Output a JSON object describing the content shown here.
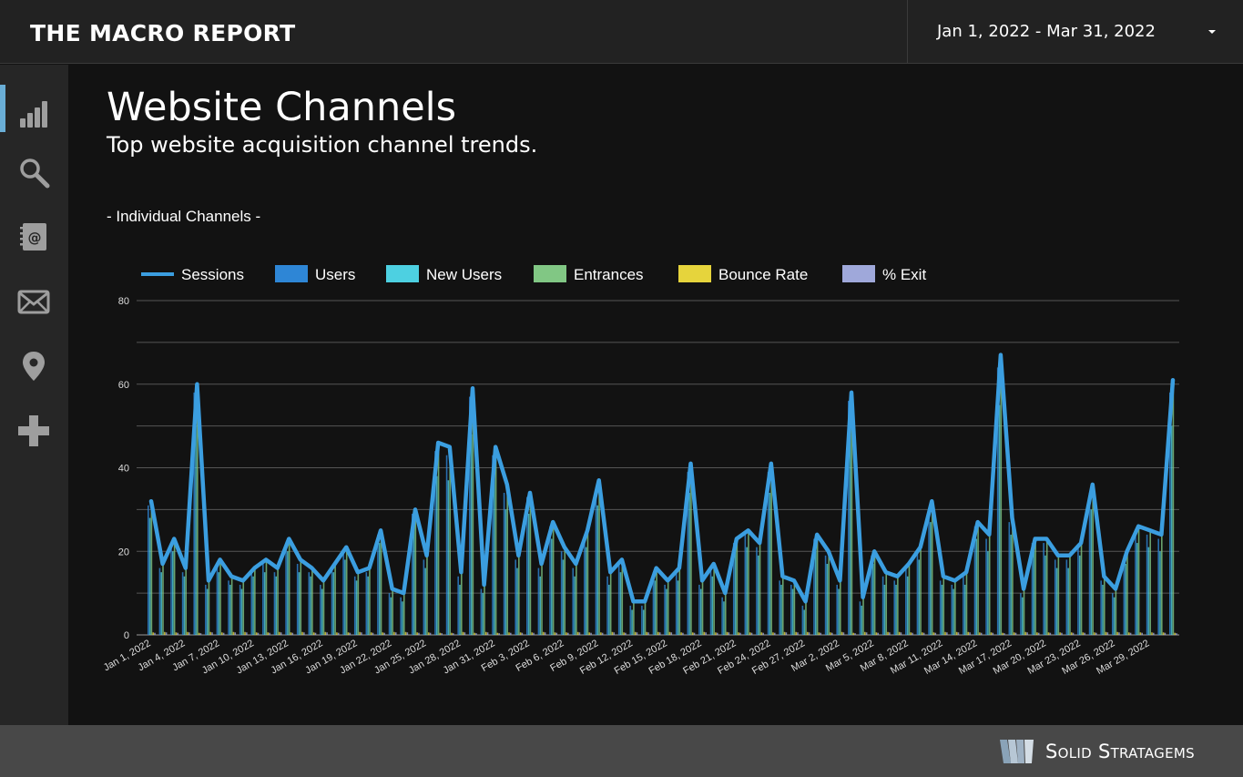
{
  "header": {
    "brand": "THE MACRO REPORT",
    "date_range": "Jan 1, 2022 - Mar 31, 2022"
  },
  "sidebar": {
    "items": [
      {
        "name": "bar-chart-icon",
        "active": true
      },
      {
        "name": "search-icon",
        "active": false
      },
      {
        "name": "contact-book-icon",
        "active": false
      },
      {
        "name": "mail-icon",
        "active": false
      },
      {
        "name": "location-pin-icon",
        "active": false
      },
      {
        "name": "plus-icon",
        "active": false
      }
    ]
  },
  "page": {
    "title": "Website Channels",
    "subtitle": "Top website acquisition channel trends.",
    "section_label": "- Individual Channels -"
  },
  "colors": {
    "sessions": "#3b9ee0",
    "users": "#2e86d6",
    "new_users": "#4dd0e1",
    "entrances": "#81c784",
    "bounce_rate": "#e6d43c",
    "exit": "#9fa8da",
    "active_nav": "#6aaed6"
  },
  "chart_data": {
    "type": "line",
    "legend_position": "top-left",
    "grid": true,
    "ylim": [
      0,
      80
    ],
    "yticks": [
      0,
      20,
      40,
      60,
      80
    ],
    "start_date": "2022-01-01",
    "x_tick_labels": [
      "Jan 1, 2022",
      "Jan 4, 2022",
      "Jan 7, 2022",
      "Jan 10, 2022",
      "Jan 13, 2022",
      "Jan 16, 2022",
      "Jan 19, 2022",
      "Jan 22, 2022",
      "Jan 25, 2022",
      "Jan 28, 2022",
      "Jan 31, 2022",
      "Feb 3, 2022",
      "Feb 6, 2022",
      "Feb 9, 2022",
      "Feb 12, 2022",
      "Feb 15, 2022",
      "Feb 18, 2022",
      "Feb 21, 2022",
      "Feb 24, 2022",
      "Feb 27, 2022",
      "Mar 2, 2022",
      "Mar 5, 2022",
      "Mar 8, 2022",
      "Mar 11, 2022",
      "Mar 14, 2022",
      "Mar 17, 2022",
      "Mar 20, 2022",
      "Mar 23, 2022",
      "Mar 26, 2022",
      "Mar 29, 2022"
    ],
    "series": [
      {
        "name": "Sessions",
        "type": "line",
        "values": [
          32,
          17,
          23,
          16,
          60,
          13,
          18,
          14,
          13,
          16,
          18,
          16,
          23,
          18,
          16,
          13,
          17,
          21,
          15,
          16,
          25,
          11,
          10,
          30,
          19,
          46,
          45,
          15,
          59,
          12,
          45,
          36,
          19,
          34,
          17,
          27,
          21,
          17,
          25,
          37,
          15,
          18,
          8,
          8,
          16,
          13,
          16,
          41,
          13,
          17,
          10,
          23,
          25,
          22,
          41,
          14,
          13,
          8,
          24,
          20,
          13,
          58,
          9,
          20,
          15,
          14,
          17,
          21,
          32,
          14,
          13,
          15,
          27,
          24,
          67,
          28,
          11,
          23,
          23,
          19,
          19,
          22,
          36,
          14,
          11,
          20,
          26,
          25,
          24,
          61
        ]
      },
      {
        "name": "Users",
        "type": "bar",
        "values": [
          31,
          16,
          22,
          15,
          58,
          12,
          17,
          13,
          12,
          15,
          17,
          15,
          22,
          17,
          15,
          12,
          16,
          20,
          14,
          15,
          24,
          10,
          9,
          29,
          18,
          44,
          43,
          14,
          57,
          11,
          43,
          34,
          18,
          33,
          16,
          26,
          20,
          16,
          24,
          35,
          14,
          17,
          7,
          7,
          15,
          12,
          15,
          39,
          12,
          16,
          9,
          22,
          24,
          21,
          39,
          13,
          12,
          7,
          23,
          19,
          12,
          56,
          8,
          19,
          14,
          13,
          16,
          20,
          30,
          13,
          12,
          14,
          26,
          23,
          64,
          27,
          10,
          22,
          22,
          18,
          18,
          21,
          34,
          13,
          10,
          19,
          25,
          24,
          23,
          58
        ]
      },
      {
        "name": "New Users",
        "type": "bar",
        "values": [
          28,
          15,
          20,
          14,
          50,
          11,
          15,
          12,
          11,
          14,
          15,
          14,
          20,
          15,
          14,
          11,
          15,
          18,
          13,
          14,
          22,
          9,
          8,
          26,
          16,
          38,
          37,
          12,
          48,
          10,
          38,
          30,
          16,
          29,
          14,
          23,
          18,
          14,
          21,
          31,
          12,
          15,
          6,
          6,
          13,
          11,
          13,
          34,
          11,
          14,
          8,
          20,
          21,
          19,
          34,
          12,
          11,
          6,
          20,
          17,
          11,
          48,
          7,
          17,
          12,
          12,
          14,
          18,
          27,
          12,
          11,
          12,
          23,
          20,
          55,
          24,
          9,
          20,
          19,
          16,
          16,
          19,
          30,
          12,
          9,
          17,
          22,
          21,
          20,
          50
        ]
      },
      {
        "name": "Entrances",
        "type": "bar",
        "values": [
          32,
          17,
          23,
          16,
          60,
          13,
          18,
          14,
          13,
          16,
          18,
          16,
          23,
          18,
          16,
          13,
          17,
          21,
          15,
          16,
          25,
          11,
          10,
          30,
          19,
          46,
          45,
          15,
          59,
          12,
          45,
          36,
          19,
          34,
          17,
          27,
          21,
          17,
          25,
          37,
          15,
          18,
          8,
          8,
          16,
          13,
          16,
          41,
          13,
          17,
          10,
          23,
          25,
          22,
          41,
          14,
          13,
          8,
          24,
          20,
          13,
          58,
          9,
          20,
          15,
          14,
          17,
          21,
          32,
          14,
          13,
          15,
          27,
          24,
          67,
          28,
          11,
          23,
          23,
          19,
          19,
          22,
          36,
          14,
          11,
          20,
          26,
          25,
          24,
          61
        ]
      },
      {
        "name": "Bounce Rate",
        "type": "bar",
        "values": [
          0.6,
          0.7,
          0.6,
          0.7,
          0.5,
          0.7,
          0.6,
          0.7,
          0.7,
          0.6,
          0.6,
          0.7,
          0.6,
          0.7,
          0.6,
          0.7,
          0.6,
          0.6,
          0.7,
          0.6,
          0.6,
          0.7,
          0.7,
          0.6,
          0.6,
          0.5,
          0.5,
          0.7,
          0.5,
          0.7,
          0.5,
          0.6,
          0.6,
          0.6,
          0.7,
          0.6,
          0.6,
          0.7,
          0.6,
          0.6,
          0.7,
          0.6,
          0.7,
          0.7,
          0.7,
          0.7,
          0.6,
          0.6,
          0.7,
          0.6,
          0.7,
          0.6,
          0.6,
          0.6,
          0.6,
          0.7,
          0.7,
          0.7,
          0.6,
          0.6,
          0.7,
          0.5,
          0.7,
          0.6,
          0.7,
          0.7,
          0.6,
          0.6,
          0.6,
          0.7,
          0.7,
          0.7,
          0.6,
          0.6,
          0.5,
          0.6,
          0.7,
          0.6,
          0.6,
          0.6,
          0.6,
          0.6,
          0.6,
          0.7,
          0.7,
          0.6,
          0.6,
          0.6,
          0.6,
          0.5
        ]
      },
      {
        "name": "% Exit",
        "type": "bar",
        "values": [
          0.5,
          0.6,
          0.5,
          0.6,
          0.4,
          0.6,
          0.5,
          0.6,
          0.6,
          0.5,
          0.5,
          0.6,
          0.5,
          0.6,
          0.5,
          0.6,
          0.5,
          0.5,
          0.6,
          0.5,
          0.5,
          0.6,
          0.6,
          0.5,
          0.5,
          0.4,
          0.4,
          0.6,
          0.4,
          0.6,
          0.4,
          0.5,
          0.5,
          0.5,
          0.6,
          0.5,
          0.5,
          0.6,
          0.5,
          0.5,
          0.6,
          0.5,
          0.6,
          0.6,
          0.6,
          0.6,
          0.5,
          0.5,
          0.6,
          0.5,
          0.6,
          0.5,
          0.5,
          0.5,
          0.5,
          0.6,
          0.6,
          0.6,
          0.5,
          0.5,
          0.6,
          0.4,
          0.6,
          0.5,
          0.6,
          0.6,
          0.5,
          0.5,
          0.5,
          0.6,
          0.6,
          0.6,
          0.5,
          0.5,
          0.4,
          0.5,
          0.6,
          0.5,
          0.5,
          0.5,
          0.5,
          0.5,
          0.5,
          0.6,
          0.6,
          0.5,
          0.5,
          0.5,
          0.5,
          0.4
        ]
      }
    ]
  },
  "footer": {
    "brand": "Solid Stratagems"
  }
}
